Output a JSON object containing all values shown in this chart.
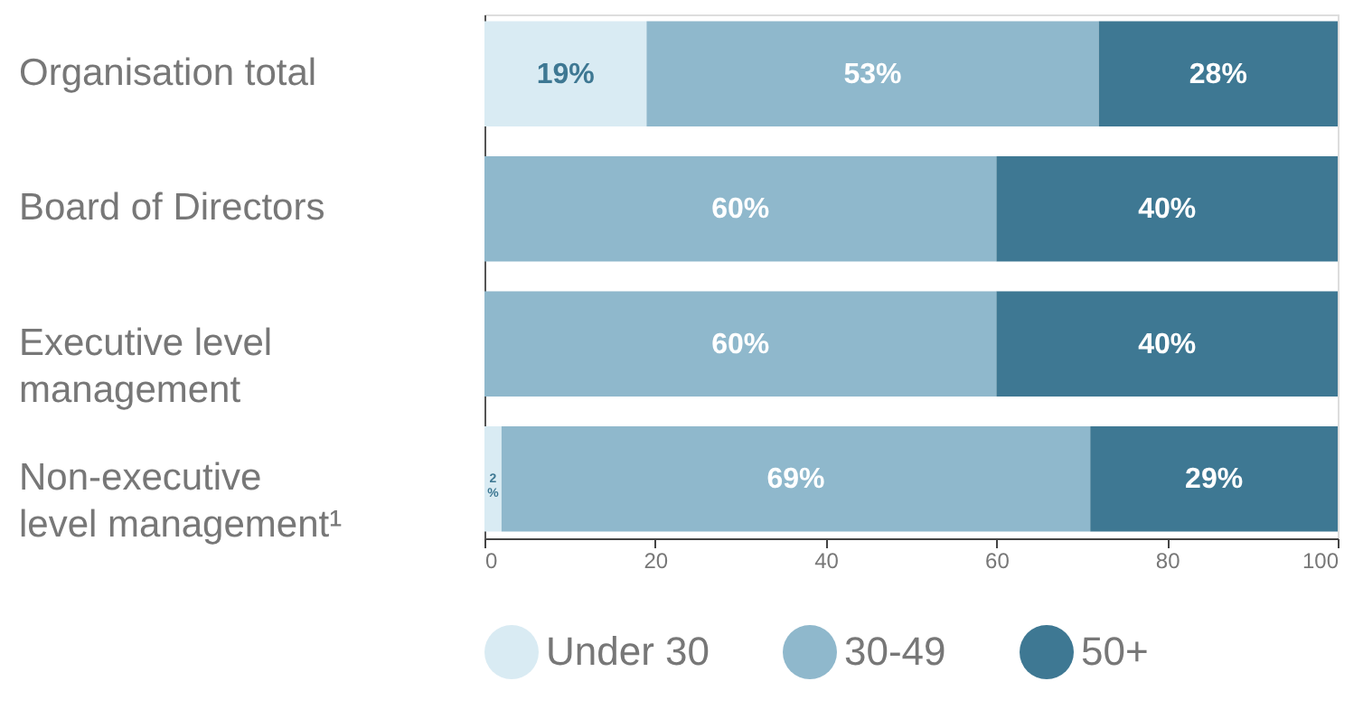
{
  "chart_data": {
    "type": "bar",
    "orientation": "horizontal",
    "stacked": true,
    "categories": [
      "Organisation total",
      "Board of Directors",
      "Executive level management",
      "Non-executive level management¹"
    ],
    "series": [
      {
        "name": "Under 30",
        "color": "#d9ebf3",
        "values": [
          19,
          null,
          null,
          2
        ],
        "value_labels": [
          "19%",
          null,
          null,
          "2%"
        ]
      },
      {
        "name": "30-49",
        "color": "#8fb8cc",
        "values": [
          53,
          60,
          60,
          69
        ],
        "value_labels": [
          "53%",
          "60%",
          "60%",
          "69%"
        ]
      },
      {
        "name": "50+",
        "color": "#3e7893",
        "values": [
          28,
          40,
          40,
          29
        ],
        "value_labels": [
          "28%",
          "40%",
          "40%",
          "29%"
        ]
      }
    ],
    "xlim": [
      0,
      100
    ],
    "xticks": [
      0,
      20,
      40,
      60,
      80,
      100
    ],
    "grid": false,
    "legend": "bottom"
  }
}
